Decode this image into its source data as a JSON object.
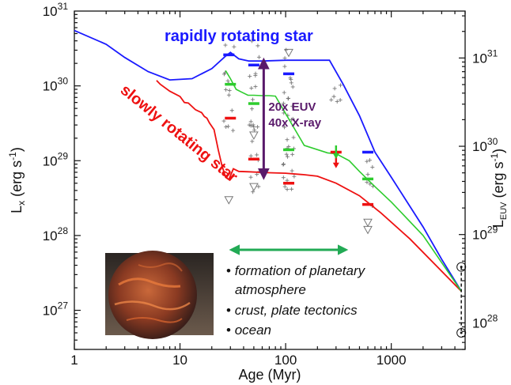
{
  "chart_data": {
    "type": "line",
    "xscale": "log",
    "yscale": "log",
    "xlim": [
      1,
      5000
    ],
    "ylim": [
      3e+26,
      1e+31
    ],
    "right_ylim": [
      5e+27,
      3.4e+31
    ],
    "xlabel": "Age (Myr)",
    "ylabel_main": "L",
    "ylabel_sub": "x",
    "ylabel_rest": " (erg s",
    "ylabel_sup": "-1",
    "ylabel_close": ")",
    "right_ylabel_main": "L",
    "right_ylabel_sub": "EUV",
    "right_ylabel_rest": " (erg s",
    "right_ylabel_sup": "-1",
    "right_ylabel_close": ")",
    "x_ticks": [
      {
        "value": 1,
        "label": "1"
      },
      {
        "value": 10,
        "label": "10"
      },
      {
        "value": 100,
        "label": "100"
      },
      {
        "value": 1000,
        "label": "1000"
      }
    ],
    "y_ticks": [
      {
        "value": 1e+27,
        "base": "10",
        "exp": "27"
      },
      {
        "value": 1e+28,
        "base": "10",
        "exp": "28"
      },
      {
        "value": 1e+29,
        "base": "10",
        "exp": "29"
      },
      {
        "value": 1e+30,
        "base": "10",
        "exp": "30"
      },
      {
        "value": 1e+31,
        "base": "10",
        "exp": "31"
      }
    ],
    "right_y_ticks": [
      {
        "value": 1e+28,
        "base": "10",
        "exp": "28"
      },
      {
        "value": 1e+29,
        "base": "10",
        "exp": "29"
      },
      {
        "value": 1e+30,
        "base": "10",
        "exp": "30"
      },
      {
        "value": 1e+31,
        "base": "10",
        "exp": "31"
      }
    ],
    "series": [
      {
        "name": "rapidly rotating star",
        "color": "#1a1aff",
        "points": [
          [
            1,
            5.5e+30
          ],
          [
            2,
            3.6e+30
          ],
          [
            3,
            2.4e+30
          ],
          [
            5,
            1.55e+30
          ],
          [
            8,
            1.2e+30
          ],
          [
            13,
            1.25e+30
          ],
          [
            20,
            1.7e+30
          ],
          [
            27,
            2.5e+30
          ],
          [
            30,
            2.8e+30
          ],
          [
            36,
            2.3e+30
          ],
          [
            45,
            2.15e+30
          ],
          [
            60,
            2.15e+30
          ],
          [
            100,
            2.2e+30
          ],
          [
            150,
            2.2e+30
          ],
          [
            200,
            2.2e+30
          ],
          [
            260,
            2.2e+30
          ],
          [
            350,
            1.05e+30
          ],
          [
            500,
            4e+29
          ],
          [
            700,
            1.3e+29
          ],
          [
            1000,
            6e+28
          ],
          [
            2000,
            1.3e+28
          ],
          [
            3000,
            4.8e+27
          ],
          [
            4600,
            1.8e+27
          ]
        ]
      },
      {
        "name": "slowly rotating star",
        "color": "#ee1111",
        "points": [
          [
            6,
            1.18e+30
          ],
          [
            6.5,
            1.05e+30
          ],
          [
            8,
            8.5e+29
          ],
          [
            10,
            7.2e+29
          ],
          [
            11,
            6e+29
          ],
          [
            12,
            5.9e+29
          ],
          [
            14,
            4.8e+29
          ],
          [
            16,
            4.4e+29
          ],
          [
            17,
            3.9e+29
          ],
          [
            18,
            3.7e+29
          ],
          [
            19,
            3.2e+29
          ],
          [
            21,
            2.6e+29
          ],
          [
            23,
            1.4e+29
          ],
          [
            25,
            8.5e+28
          ],
          [
            27,
            6e+28
          ],
          [
            29,
            5.6e+28
          ],
          [
            32,
            7.8e+28
          ],
          [
            36,
            7.2e+28
          ],
          [
            45,
            7.1e+28
          ],
          [
            70,
            6.9e+28
          ],
          [
            100,
            6.8e+28
          ],
          [
            150,
            6.5e+28
          ],
          [
            200,
            6.2e+28
          ],
          [
            300,
            5e+28
          ],
          [
            500,
            3.4e+28
          ],
          [
            800,
            2e+28
          ],
          [
            1500,
            9e+27
          ],
          [
            4600,
            1.8e+27
          ]
        ]
      },
      {
        "name": "",
        "color": "#2ecc2e",
        "points": [
          [
            27,
            1.6e+30
          ],
          [
            30,
            1.25e+30
          ],
          [
            34,
            9e+29
          ],
          [
            38,
            8.3e+29
          ],
          [
            44,
            7.5e+29
          ],
          [
            50,
            7.5e+29
          ],
          [
            60,
            7.4e+29
          ],
          [
            70,
            7.4e+29
          ],
          [
            80,
            7.3e+29
          ],
          [
            150,
            1.6e+29
          ],
          [
            250,
            1.27e+29
          ],
          [
            300,
            1.24e+29
          ],
          [
            400,
            1e+29
          ],
          [
            500,
            7.2e+28
          ],
          [
            700,
            4.5e+28
          ],
          [
            1000,
            2.8e+28
          ],
          [
            2000,
            1e+28
          ],
          [
            4600,
            1.8e+27
          ]
        ]
      }
    ],
    "dash_markers": [
      {
        "x": 29,
        "y": 2.6e+30,
        "color": "#1a1aff"
      },
      {
        "x": 30,
        "y": 1.05e+30,
        "color": "#2ecc2e"
      },
      {
        "x": 30,
        "y": 3.7e+29,
        "color": "#ee1111"
      },
      {
        "x": 50,
        "y": 1.9e+30,
        "color": "#1a1aff"
      },
      {
        "x": 50,
        "y": 5.8e+29,
        "color": "#2ecc2e"
      },
      {
        "x": 50,
        "y": 1.05e+29,
        "color": "#ee1111"
      },
      {
        "x": 107,
        "y": 1.45e+30,
        "color": "#1a1aff"
      },
      {
        "x": 107,
        "y": 1.4e+29,
        "color": "#2ecc2e"
      },
      {
        "x": 107,
        "y": 5e+28,
        "color": "#ee1111"
      },
      {
        "x": 300,
        "y": 1.3e+29,
        "color": "#ee1111"
      },
      {
        "x": 600,
        "y": 1.3e+29,
        "color": "#1a1aff"
      },
      {
        "x": 600,
        "y": 5.7e+28,
        "color": "#2ecc2e"
      },
      {
        "x": 600,
        "y": 2.6e+28,
        "color": "#ee1111"
      }
    ],
    "arrow_markers": [
      {
        "x": 300,
        "y": 1.2e+29,
        "color": "#ee1111"
      },
      {
        "x": 300,
        "y": 1.6e+29,
        "color": "#2ecc2e"
      }
    ],
    "upper_limits": [
      {
        "x": 29,
        "y": 3e+28
      },
      {
        "x": 50,
        "y": 2.2e+29
      },
      {
        "x": 50,
        "y": 4.5e+28
      },
      {
        "x": 107,
        "y": 2.8e+30
      },
      {
        "x": 600,
        "y": 1.5e+28
      },
      {
        "x": 600,
        "y": 1.2e+28
      }
    ],
    "scatter_clusters": [
      {
        "x": 29,
        "y_min": 2e+29,
        "y_max": 4e+30,
        "count": 14
      },
      {
        "x": 50,
        "y_min": 3e+28,
        "y_max": 5e+30,
        "count": 26
      },
      {
        "x": 107,
        "y_min": 4e+28,
        "y_max": 5e+30,
        "count": 34
      },
      {
        "x": 300,
        "y_min": 6e+29,
        "y_max": 1.6e+30,
        "count": 6
      },
      {
        "x": 600,
        "y_min": 2e+28,
        "y_max": 1.2e+29,
        "count": 8
      }
    ],
    "sun_range": {
      "x": 4600,
      "y_high": 3.8e+27,
      "y_low": 5e+26
    },
    "spread_arrow": {
      "x": 62,
      "y_top": 2.2e+30,
      "y_bottom": 6e+28,
      "color": "#5a1a6b"
    },
    "spread_labels": [
      "20x EUV",
      "40x X-ray"
    ],
    "period_arrow": {
      "x_start": 30,
      "x_end": 380,
      "color": "#22aa55"
    },
    "label_rapid": "rapidly rotating star",
    "label_slow": "slowly rotating star",
    "notes": [
      {
        "bullet": "•",
        "text": "formation of planetary"
      },
      {
        "bullet": "",
        "text": "atmosphere"
      },
      {
        "bullet": "•",
        "text": "crust, plate tectonics"
      },
      {
        "bullet": "•",
        "text": "ocean"
      }
    ],
    "grid": false
  }
}
